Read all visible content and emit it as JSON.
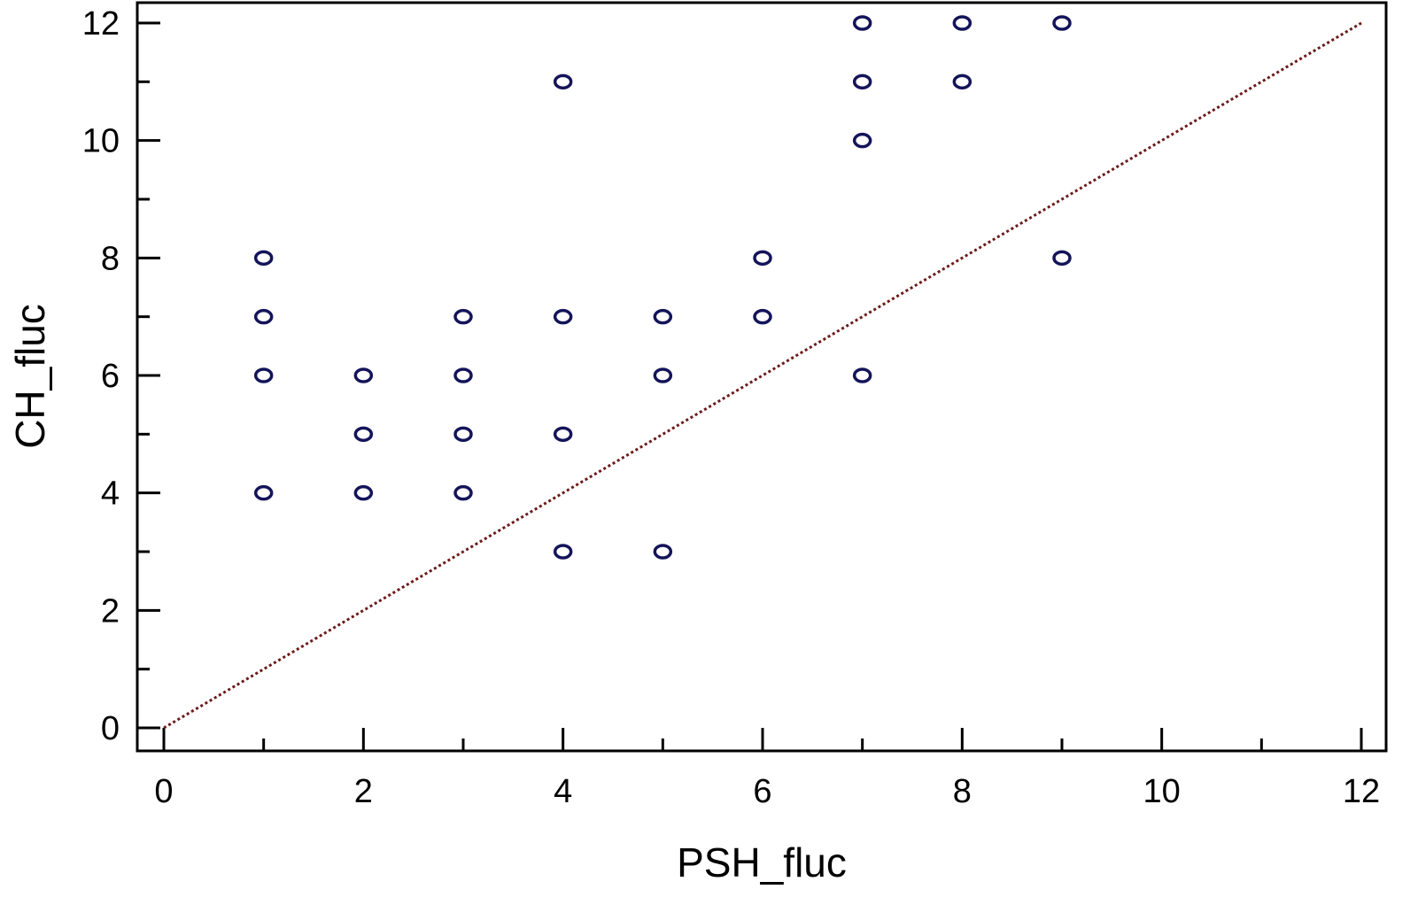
{
  "chart_data": {
    "type": "scatter",
    "xlabel": "PSH_fluc",
    "ylabel": "CH_fluc",
    "xlim": [
      0,
      12
    ],
    "ylim": [
      0,
      12
    ],
    "x_ticks": [
      0,
      2,
      4,
      6,
      8,
      10,
      12
    ],
    "y_ticks": [
      0,
      2,
      4,
      6,
      8,
      10,
      12
    ],
    "x_tick_labels": [
      "0",
      "2",
      "4",
      "6",
      "8",
      "10",
      "12"
    ],
    "y_tick_labels": [
      "0",
      "2",
      "4",
      "6",
      "8",
      "10",
      "12"
    ],
    "grid": false,
    "legend": "none",
    "marker": "o",
    "series": [
      {
        "points": [
          {
            "x": 1,
            "y": 4
          },
          {
            "x": 1,
            "y": 6
          },
          {
            "x": 1,
            "y": 7
          },
          {
            "x": 1,
            "y": 8
          },
          {
            "x": 2,
            "y": 4
          },
          {
            "x": 2,
            "y": 5
          },
          {
            "x": 2,
            "y": 6
          },
          {
            "x": 3,
            "y": 4
          },
          {
            "x": 3,
            "y": 5
          },
          {
            "x": 3,
            "y": 6
          },
          {
            "x": 3,
            "y": 7
          },
          {
            "x": 4,
            "y": 3
          },
          {
            "x": 4,
            "y": 5
          },
          {
            "x": 4,
            "y": 7
          },
          {
            "x": 4,
            "y": 11
          },
          {
            "x": 5,
            "y": 3
          },
          {
            "x": 5,
            "y": 6
          },
          {
            "x": 5,
            "y": 7
          },
          {
            "x": 6,
            "y": 7
          },
          {
            "x": 6,
            "y": 8
          },
          {
            "x": 7,
            "y": 6
          },
          {
            "x": 7,
            "y": 10
          },
          {
            "x": 7,
            "y": 11
          },
          {
            "x": 7,
            "y": 12
          },
          {
            "x": 8,
            "y": 11
          },
          {
            "x": 8,
            "y": 12
          },
          {
            "x": 9,
            "y": 8
          },
          {
            "x": 9,
            "y": 12
          }
        ]
      }
    ],
    "reference_line": {
      "x": [
        0,
        12
      ],
      "y": [
        0,
        12
      ],
      "style": "dotted"
    },
    "colors": {
      "marker": "#14145a",
      "reference_line": "#6b1a1a",
      "axis": "#000000"
    }
  }
}
